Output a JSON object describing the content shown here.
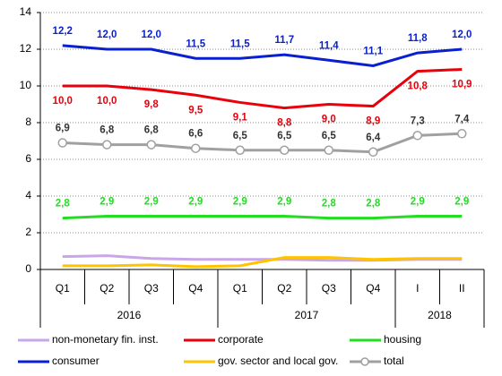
{
  "chart_data": {
    "type": "line",
    "groups": [
      {
        "label": "2016",
        "categories": [
          "Q1",
          "Q2",
          "Q3",
          "Q4"
        ]
      },
      {
        "label": "2017",
        "categories": [
          "Q1",
          "Q2",
          "Q3",
          "Q4"
        ]
      },
      {
        "label": "2018",
        "categories": [
          "I",
          "II"
        ]
      }
    ],
    "ylim": [
      0,
      14
    ],
    "yticks": [
      0,
      2,
      4,
      6,
      8,
      10,
      12,
      14
    ],
    "grid": true,
    "series": [
      {
        "name": "non-monetary fin. inst.",
        "color": "#c9a6e8",
        "values": [
          0.7,
          0.75,
          0.6,
          0.55,
          0.55,
          0.55,
          0.5,
          0.5,
          0.55,
          0.55
        ]
      },
      {
        "name": "corporate",
        "color": "#e8000b",
        "label_position": "below",
        "values": [
          10.0,
          10.0,
          9.8,
          9.5,
          9.1,
          8.8,
          9.0,
          8.9,
          10.8,
          10.9
        ],
        "value_labels": [
          "10,0",
          "10,0",
          "9,8",
          "9,5",
          "9,1",
          "8,8",
          "9,0",
          "8,9",
          "10,8",
          "10,9"
        ]
      },
      {
        "name": "housing",
        "color": "#22dd22",
        "label_position": "above",
        "values": [
          2.8,
          2.9,
          2.9,
          2.9,
          2.9,
          2.9,
          2.8,
          2.8,
          2.9,
          2.9
        ],
        "value_labels": [
          "2,8",
          "2,9",
          "2,9",
          "2,9",
          "2,9",
          "2,9",
          "2,8",
          "2,8",
          "2,9",
          "2,9"
        ]
      },
      {
        "name": "consumer",
        "color": "#0a1fd0",
        "label_position": "above",
        "values": [
          12.2,
          12.0,
          12.0,
          11.5,
          11.5,
          11.7,
          11.4,
          11.1,
          11.8,
          12.0
        ],
        "value_labels": [
          "12,2",
          "12,0",
          "12,0",
          "11,5",
          "11,5",
          "11,7",
          "11,4",
          "11,1",
          "11,8",
          "12,0"
        ]
      },
      {
        "name": "gov. sector and local gov.",
        "color": "#ffc400",
        "values": [
          0.2,
          0.2,
          0.25,
          0.15,
          0.2,
          0.65,
          0.65,
          0.55,
          0.6,
          0.6
        ]
      },
      {
        "name": "total",
        "color": "#a0a0a0",
        "markers": true,
        "label_position": "above",
        "values": [
          6.9,
          6.8,
          6.8,
          6.6,
          6.5,
          6.5,
          6.5,
          6.4,
          7.3,
          7.4
        ],
        "value_labels": [
          "6,9",
          "6,8",
          "6,8",
          "6,6",
          "6,5",
          "6,5",
          "6,5",
          "6,4",
          "7,3",
          "7,4"
        ]
      }
    ]
  }
}
